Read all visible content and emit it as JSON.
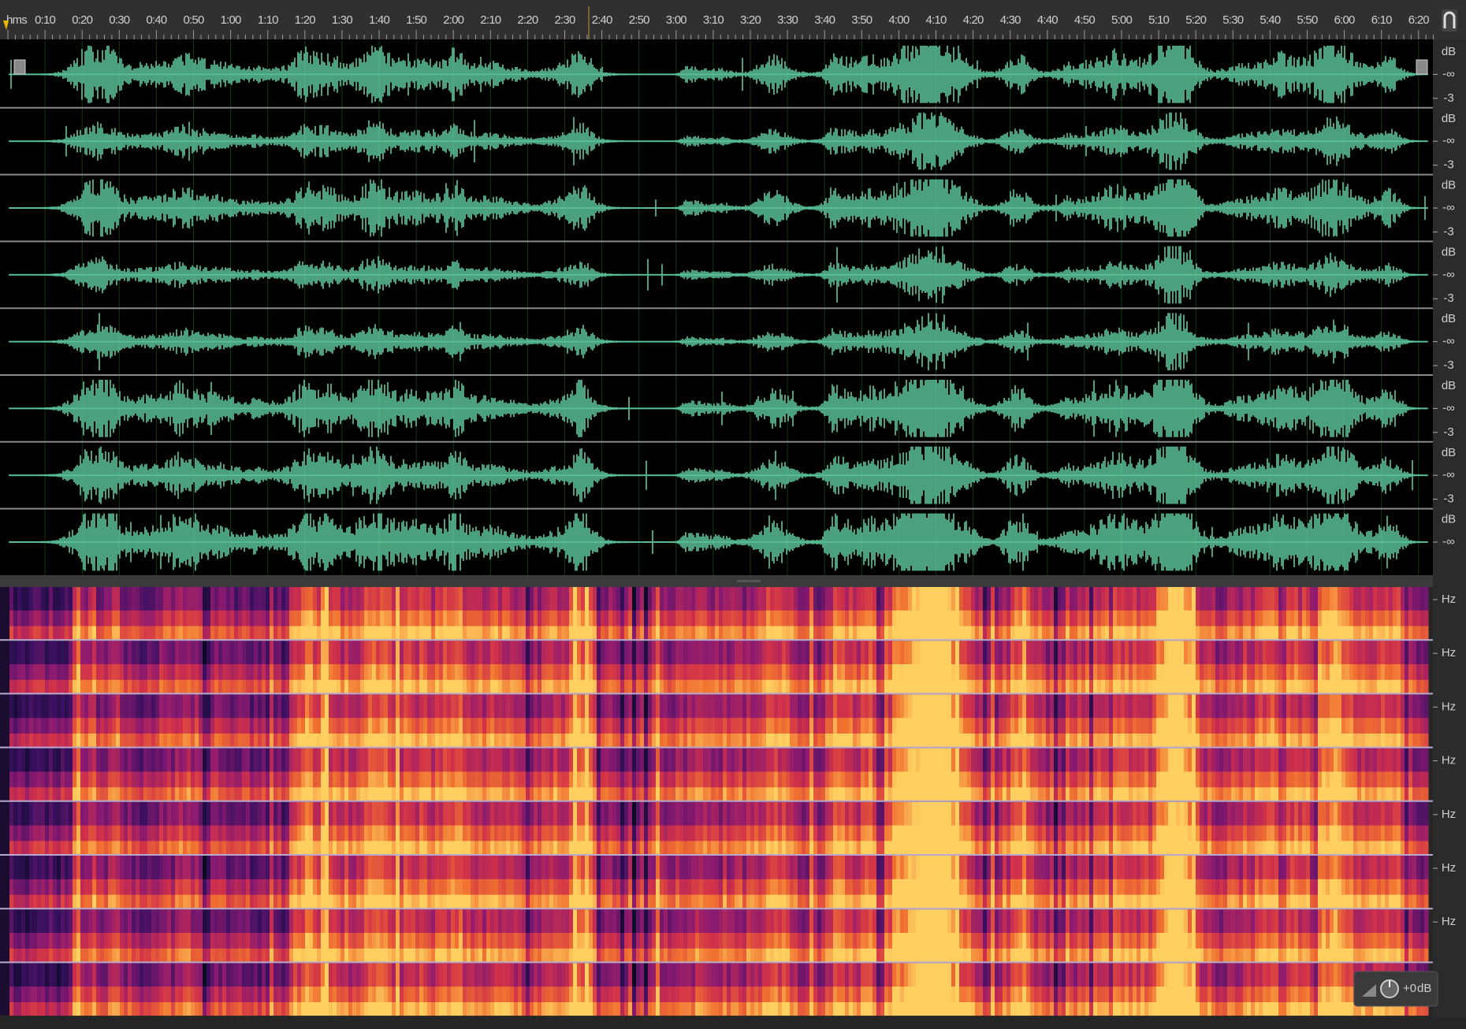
{
  "ruler": {
    "unit": "hms",
    "labels": [
      "0:10",
      "0:20",
      "0:30",
      "0:40",
      "0:50",
      "1:00",
      "1:10",
      "1:20",
      "1:30",
      "1:40",
      "1:50",
      "2:00",
      "2:10",
      "2:20",
      "2:30",
      "2:40",
      "2:50",
      "3:00",
      "3:10",
      "3:20",
      "3:30",
      "3:40",
      "3:50",
      "4:00",
      "4:10",
      "4:20",
      "4:30",
      "4:40",
      "4:50",
      "5:00",
      "5:10",
      "5:20",
      "5:30",
      "5:40",
      "5:50",
      "6:00",
      "6:10",
      "6:20"
    ]
  },
  "waveform": {
    "channels": [
      {
        "unit": "dB",
        "scale": [
          "-∞",
          "-3"
        ]
      },
      {
        "unit": "dB",
        "scale": [
          "-∞",
          "-3"
        ]
      },
      {
        "unit": "dB",
        "scale": [
          "-∞",
          "-3"
        ]
      },
      {
        "unit": "dB",
        "scale": [
          "-∞",
          "-3"
        ]
      },
      {
        "unit": "dB",
        "scale": [
          "-∞",
          "-3"
        ]
      },
      {
        "unit": "dB",
        "scale": [
          "-∞",
          "-3"
        ]
      },
      {
        "unit": "dB",
        "scale": [
          "-∞",
          "-3"
        ]
      },
      {
        "unit": "dB",
        "scale": [
          "-∞"
        ]
      }
    ]
  },
  "spectrogram": {
    "channels": [
      {
        "unit": "Hz"
      },
      {
        "unit": "Hz"
      },
      {
        "unit": "Hz"
      },
      {
        "unit": "Hz"
      },
      {
        "unit": "Hz"
      },
      {
        "unit": "Hz"
      },
      {
        "unit": "Hz"
      }
    ]
  },
  "volume": {
    "gain": "+0",
    "unit": "dB"
  }
}
